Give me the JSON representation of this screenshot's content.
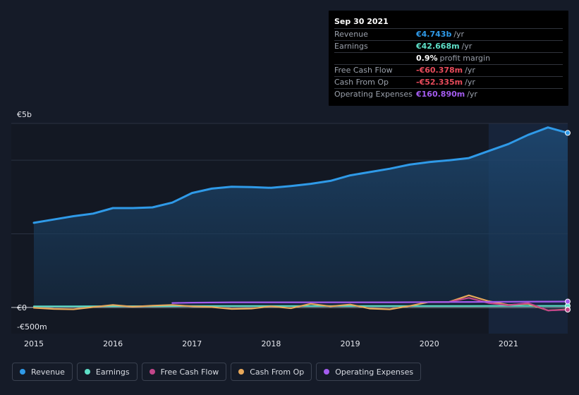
{
  "tooltip": {
    "date": "Sep 30 2021",
    "rows": [
      {
        "label": "Revenue",
        "value": "€4.743b",
        "unit": "/yr",
        "color": "#2f9ae8"
      },
      {
        "label": "Earnings",
        "value": "€42.668m",
        "unit": "/yr",
        "color": "#5ee0c8"
      },
      {
        "label": "",
        "value": "0.9%",
        "unit": "profit margin",
        "color": "#ffffff"
      },
      {
        "label": "Free Cash Flow",
        "value": "-€60.378m",
        "unit": "/yr",
        "color": "#e84b5b"
      },
      {
        "label": "Cash From Op",
        "value": "-€52.335m",
        "unit": "/yr",
        "color": "#e84b5b"
      },
      {
        "label": "Operating Expenses",
        "value": "€160.890m",
        "unit": "/yr",
        "color": "#a45cf0"
      }
    ]
  },
  "legend": [
    {
      "label": "Revenue",
      "color": "#2f9ae8"
    },
    {
      "label": "Earnings",
      "color": "#5ee0c8"
    },
    {
      "label": "Free Cash Flow",
      "color": "#c2468a"
    },
    {
      "label": "Cash From Op",
      "color": "#e8a85a"
    },
    {
      "label": "Operating Expenses",
      "color": "#a45cf0"
    }
  ],
  "chart_data": {
    "type": "area",
    "title": "",
    "xlabel": "",
    "ylabel": "",
    "y_tick_labels": [
      "€5b",
      "€0",
      "-€500m"
    ],
    "x_tick_labels": [
      "2015",
      "2016",
      "2017",
      "2018",
      "2019",
      "2020",
      "2021"
    ],
    "ylim": [
      -500,
      5000
    ],
    "unit": "€m",
    "highlight_from": 2020.75,
    "series": [
      {
        "name": "Revenue",
        "color": "#2f9ae8",
        "x": [
          2015.0,
          2015.25,
          2015.5,
          2015.75,
          2016.0,
          2016.25,
          2016.5,
          2016.75,
          2017.0,
          2017.25,
          2017.5,
          2017.75,
          2018.0,
          2018.25,
          2018.5,
          2018.75,
          2019.0,
          2019.25,
          2019.5,
          2019.75,
          2020.0,
          2020.25,
          2020.5,
          2020.75,
          2021.0,
          2021.25,
          2021.5,
          2021.75
        ],
        "values": [
          2300,
          2390,
          2480,
          2550,
          2700,
          2700,
          2720,
          2850,
          3110,
          3230,
          3280,
          3270,
          3250,
          3300,
          3360,
          3440,
          3590,
          3680,
          3770,
          3880,
          3950,
          4000,
          4060,
          4250,
          4440,
          4690,
          4890,
          4743
        ]
      },
      {
        "name": "Earnings",
        "color": "#5ee0c8",
        "x": [
          2015.0,
          2015.5,
          2016.0,
          2016.5,
          2017.0,
          2017.5,
          2018.0,
          2018.5,
          2019.0,
          2019.5,
          2020.0,
          2020.5,
          2021.0,
          2021.5,
          2021.75
        ],
        "values": [
          30,
          30,
          35,
          35,
          40,
          40,
          40,
          40,
          40,
          40,
          40,
          40,
          42,
          42,
          42.668
        ]
      },
      {
        "name": "Free Cash Flow",
        "color": "#c2468a",
        "x": [
          2020.0,
          2020.25,
          2020.5,
          2020.75,
          2021.0,
          2021.25,
          2021.5,
          2021.75
        ],
        "values": [
          150,
          150,
          260,
          120,
          60,
          120,
          -80,
          -60.378
        ]
      },
      {
        "name": "Cash From Op",
        "color": "#e8a85a",
        "x": [
          2015.0,
          2015.25,
          2015.5,
          2015.75,
          2016.0,
          2016.25,
          2016.5,
          2016.75,
          2017.0,
          2017.25,
          2017.5,
          2017.75,
          2018.0,
          2018.25,
          2018.5,
          2018.75,
          2019.0,
          2019.25,
          2019.5,
          2019.75,
          2020.0,
          2020.25,
          2020.5,
          2020.75,
          2021.0,
          2021.25,
          2021.5,
          2021.75
        ],
        "values": [
          -10,
          -40,
          -50,
          10,
          70,
          20,
          50,
          70,
          30,
          10,
          -40,
          -30,
          30,
          -20,
          100,
          30,
          80,
          -30,
          -50,
          40,
          150,
          150,
          330,
          170,
          70,
          100,
          -80,
          -52.335
        ]
      },
      {
        "name": "Operating Expenses",
        "color": "#a45cf0",
        "x": [
          2016.75,
          2017.0,
          2017.5,
          2018.0,
          2018.5,
          2019.0,
          2019.5,
          2020.0,
          2020.5,
          2021.0,
          2021.5,
          2021.75
        ],
        "values": [
          120,
          130,
          140,
          140,
          140,
          140,
          140,
          145,
          150,
          155,
          160,
          160.89
        ]
      }
    ]
  }
}
